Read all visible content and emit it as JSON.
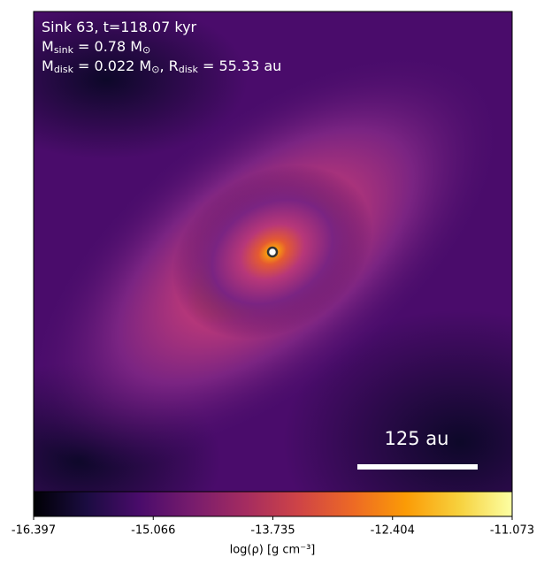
{
  "chart_data": {
    "type": "heatmap",
    "annotations": [
      [
        {
          "text": "Sink 63, t=118.07 kyr"
        }
      ],
      [
        {
          "text": "M"
        },
        {
          "text": "sink",
          "sub": true
        },
        {
          "text": " = 0.78 M"
        },
        {
          "text": "⊙",
          "sub": true
        }
      ],
      [
        {
          "text": "M"
        },
        {
          "text": "disk",
          "sub": true
        },
        {
          "text": " = 0.022 M"
        },
        {
          "text": "⊙",
          "sub": true
        },
        {
          "text": ", R"
        },
        {
          "text": "disk",
          "sub": true
        },
        {
          "text": " = 55.33 au"
        }
      ]
    ],
    "scale_bar_label": "125 au",
    "colormap": "inferno",
    "clim": [
      -16.397,
      -11.073
    ],
    "cticks": [
      -16.397,
      -15.066,
      -13.735,
      -12.404,
      -11.073
    ],
    "colorbar_label": "log(ρ) [g cm⁻³]"
  }
}
